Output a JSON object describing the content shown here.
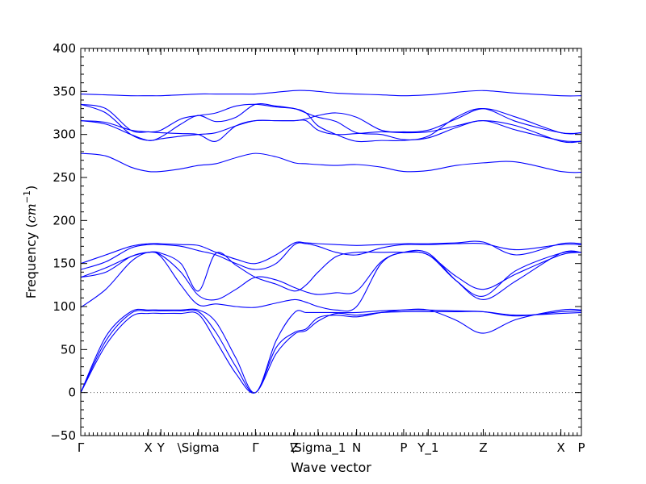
{
  "chart_data": {
    "type": "line",
    "title": "",
    "xlabel": "Wave vector",
    "ylabel_text": "Frequency (",
    "ylabel_unit_base": "cm",
    "ylabel_unit_exp": "−1",
    "ylabel_close": ")",
    "ylim": [
      -50,
      400
    ],
    "xlim": [
      0,
      1
    ],
    "y_major_ticks": [
      -50,
      0,
      50,
      100,
      150,
      200,
      250,
      300,
      350,
      400
    ],
    "minor_tick_step": 10,
    "x_ticks": [
      {
        "label": "Γ",
        "x": 0.0
      },
      {
        "label": "X",
        "x": 0.135
      },
      {
        "label": "Y",
        "x": 0.16
      },
      {
        "label": "\\Sigma",
        "x": 0.235
      },
      {
        "label": "Γ",
        "x": 0.349
      },
      {
        "label": "Z",
        "x": 0.427
      },
      {
        "label": "\\Sigma_1",
        "x": 0.474
      },
      {
        "label": "N",
        "x": 0.551
      },
      {
        "label": "P",
        "x": 0.645
      },
      {
        "label": "Y_1",
        "x": 0.694
      },
      {
        "label": "Z",
        "x": 0.804
      },
      {
        "label": "X",
        "x": 0.959
      },
      {
        "label": "P",
        "x": 1.0
      }
    ],
    "zero_line": {
      "y": 0,
      "style": "dotted",
      "color": "#555555"
    },
    "line_color": "#0000ff",
    "series": [
      {
        "x": [
          0,
          0.05,
          0.1,
          0.135,
          0.16,
          0.2,
          0.235,
          0.27,
          0.31,
          0.349,
          0.39,
          0.427,
          0.45,
          0.474,
          0.51,
          0.551,
          0.6,
          0.645,
          0.694,
          0.75,
          0.804,
          0.87,
          0.959,
          1.0
        ],
        "y": [
          0,
          55,
          88,
          92,
          92,
          92,
          91,
          60,
          22,
          0,
          45,
          68,
          72,
          83,
          92,
          90,
          93,
          94,
          94,
          94,
          94,
          90,
          92,
          93
        ]
      },
      {
        "x": [
          0,
          0.05,
          0.1,
          0.135,
          0.16,
          0.2,
          0.235,
          0.27,
          0.31,
          0.349,
          0.39,
          0.427,
          0.45,
          0.474,
          0.51,
          0.551,
          0.6,
          0.645,
          0.694,
          0.75,
          0.804,
          0.87,
          0.959,
          1.0
        ],
        "y": [
          0,
          60,
          92,
          95,
          95,
          95,
          94,
          70,
          30,
          0,
          52,
          70,
          74,
          87,
          90,
          88,
          93,
          96,
          96,
          84,
          69,
          85,
          96,
          96
        ]
      },
      {
        "x": [
          0,
          0.05,
          0.1,
          0.135,
          0.16,
          0.2,
          0.235,
          0.27,
          0.31,
          0.349,
          0.39,
          0.427,
          0.45,
          0.474,
          0.51,
          0.551,
          0.6,
          0.645,
          0.694,
          0.75,
          0.804,
          0.87,
          0.959,
          1.0
        ],
        "y": [
          0,
          65,
          94,
          96,
          96,
          96,
          96,
          82,
          40,
          0,
          60,
          93,
          93,
          93,
          93,
          93,
          95,
          96,
          96,
          95,
          94,
          89,
          94,
          95
        ]
      },
      {
        "x": [
          0,
          0.05,
          0.1,
          0.135,
          0.16,
          0.2,
          0.235,
          0.27,
          0.31,
          0.349,
          0.39,
          0.427,
          0.45,
          0.474,
          0.51,
          0.551,
          0.6,
          0.645,
          0.694,
          0.75,
          0.804,
          0.87,
          0.959,
          1.0
        ],
        "y": [
          99,
          120,
          152,
          163,
          158,
          125,
          102,
          103,
          100,
          99,
          104,
          108,
          105,
          100,
          96,
          100,
          150,
          163,
          162,
          130,
          108,
          130,
          162,
          163
        ]
      },
      {
        "x": [
          0,
          0.05,
          0.1,
          0.135,
          0.16,
          0.2,
          0.235,
          0.27,
          0.31,
          0.349,
          0.39,
          0.427,
          0.45,
          0.474,
          0.51,
          0.551,
          0.6,
          0.645,
          0.694,
          0.75,
          0.804,
          0.87,
          0.959,
          1.0
        ],
        "y": [
          134,
          140,
          158,
          163,
          160,
          140,
          113,
          108,
          120,
          134,
          131,
          122,
          117,
          114,
          116,
          118,
          152,
          163,
          160,
          135,
          120,
          138,
          160,
          163
        ]
      },
      {
        "x": [
          0,
          0.05,
          0.1,
          0.135,
          0.16,
          0.2,
          0.235,
          0.27,
          0.31,
          0.349,
          0.39,
          0.427,
          0.45,
          0.474,
          0.51,
          0.551,
          0.6,
          0.645,
          0.694,
          0.75,
          0.804,
          0.87,
          0.959,
          1.0
        ],
        "y": [
          134,
          145,
          158,
          163,
          162,
          150,
          118,
          162,
          148,
          134,
          126,
          118,
          125,
          140,
          158,
          163,
          163,
          163,
          160,
          130,
          112,
          142,
          162,
          163
        ]
      },
      {
        "x": [
          0,
          0.05,
          0.1,
          0.135,
          0.16,
          0.2,
          0.235,
          0.27,
          0.31,
          0.349,
          0.39,
          0.427,
          0.45,
          0.474,
          0.51,
          0.551,
          0.6,
          0.645,
          0.694,
          0.75,
          0.804,
          0.87,
          0.959,
          1.0
        ],
        "y": [
          143,
          152,
          168,
          172,
          172,
          170,
          165,
          160,
          150,
          143,
          150,
          172,
          173,
          170,
          163,
          160,
          168,
          172,
          172,
          173,
          173,
          166,
          172,
          172
        ]
      },
      {
        "x": [
          0,
          0.05,
          0.1,
          0.135,
          0.16,
          0.2,
          0.235,
          0.27,
          0.31,
          0.349,
          0.39,
          0.427,
          0.45,
          0.474,
          0.51,
          0.551,
          0.6,
          0.645,
          0.694,
          0.75,
          0.804,
          0.87,
          0.959,
          1.0
        ],
        "y": [
          150,
          160,
          170,
          173,
          173,
          172,
          171,
          163,
          155,
          150,
          160,
          174,
          174,
          173,
          172,
          171,
          172,
          173,
          173,
          174,
          175,
          160,
          173,
          173
        ]
      },
      {
        "x": [
          0,
          0.05,
          0.1,
          0.135,
          0.16,
          0.2,
          0.235,
          0.27,
          0.31,
          0.349,
          0.39,
          0.427,
          0.45,
          0.474,
          0.51,
          0.551,
          0.6,
          0.645,
          0.694,
          0.75,
          0.804,
          0.87,
          0.959,
          1.0
        ],
        "y": [
          278,
          275,
          262,
          257,
          257,
          260,
          264,
          266,
          273,
          278,
          274,
          267,
          266,
          265,
          264,
          265,
          262,
          257,
          258,
          264,
          267,
          268,
          257,
          256
        ]
      },
      {
        "x": [
          0,
          0.05,
          0.1,
          0.135,
          0.16,
          0.2,
          0.235,
          0.27,
          0.31,
          0.349,
          0.39,
          0.427,
          0.45,
          0.474,
          0.51,
          0.551,
          0.6,
          0.645,
          0.694,
          0.75,
          0.804,
          0.87,
          0.959,
          1.0
        ],
        "y": [
          316,
          312,
          300,
          293,
          295,
          298,
          300,
          302,
          310,
          316,
          316,
          316,
          318,
          322,
          325,
          320,
          305,
          303,
          305,
          318,
          330,
          320,
          302,
          302
        ]
      },
      {
        "x": [
          0,
          0.05,
          0.1,
          0.135,
          0.16,
          0.2,
          0.235,
          0.27,
          0.31,
          0.349,
          0.39,
          0.427,
          0.45,
          0.474,
          0.51,
          0.551,
          0.6,
          0.645,
          0.694,
          0.75,
          0.804,
          0.87,
          0.959,
          1.0
        ],
        "y": [
          316,
          314,
          305,
          303,
          302,
          301,
          300,
          292,
          310,
          316,
          316,
          316,
          316,
          305,
          300,
          301,
          303,
          302,
          303,
          310,
          316,
          310,
          292,
          292
        ]
      },
      {
        "x": [
          0,
          0.05,
          0.1,
          0.135,
          0.16,
          0.2,
          0.235,
          0.27,
          0.31,
          0.349,
          0.39,
          0.427,
          0.45,
          0.474,
          0.51,
          0.551,
          0.6,
          0.645,
          0.694,
          0.75,
          0.804,
          0.87,
          0.959,
          1.0
        ],
        "y": [
          335,
          330,
          305,
          303,
          305,
          318,
          322,
          325,
          333,
          335,
          332,
          330,
          325,
          310,
          300,
          292,
          293,
          293,
          298,
          320,
          330,
          315,
          302,
          302
        ]
      },
      {
        "x": [
          0,
          0.05,
          0.1,
          0.135,
          0.16,
          0.2,
          0.235,
          0.27,
          0.31,
          0.349,
          0.39,
          0.427,
          0.45,
          0.474,
          0.51,
          0.551,
          0.6,
          0.645,
          0.694,
          0.75,
          0.804,
          0.87,
          0.959,
          1.0
        ],
        "y": [
          335,
          325,
          300,
          293,
          297,
          312,
          322,
          315,
          320,
          335,
          333,
          330,
          325,
          320,
          315,
          302,
          300,
          294,
          296,
          308,
          316,
          305,
          293,
          292
        ]
      },
      {
        "x": [
          0,
          0.05,
          0.1,
          0.135,
          0.16,
          0.2,
          0.235,
          0.27,
          0.31,
          0.349,
          0.39,
          0.427,
          0.45,
          0.474,
          0.51,
          0.551,
          0.6,
          0.645,
          0.694,
          0.75,
          0.804,
          0.87,
          0.959,
          1.0
        ],
        "y": [
          347,
          346,
          345,
          345,
          345,
          346,
          347,
          347,
          347,
          347,
          349,
          351,
          351,
          350,
          348,
          347,
          346,
          345,
          346,
          349,
          351,
          348,
          345,
          345
        ]
      }
    ]
  }
}
